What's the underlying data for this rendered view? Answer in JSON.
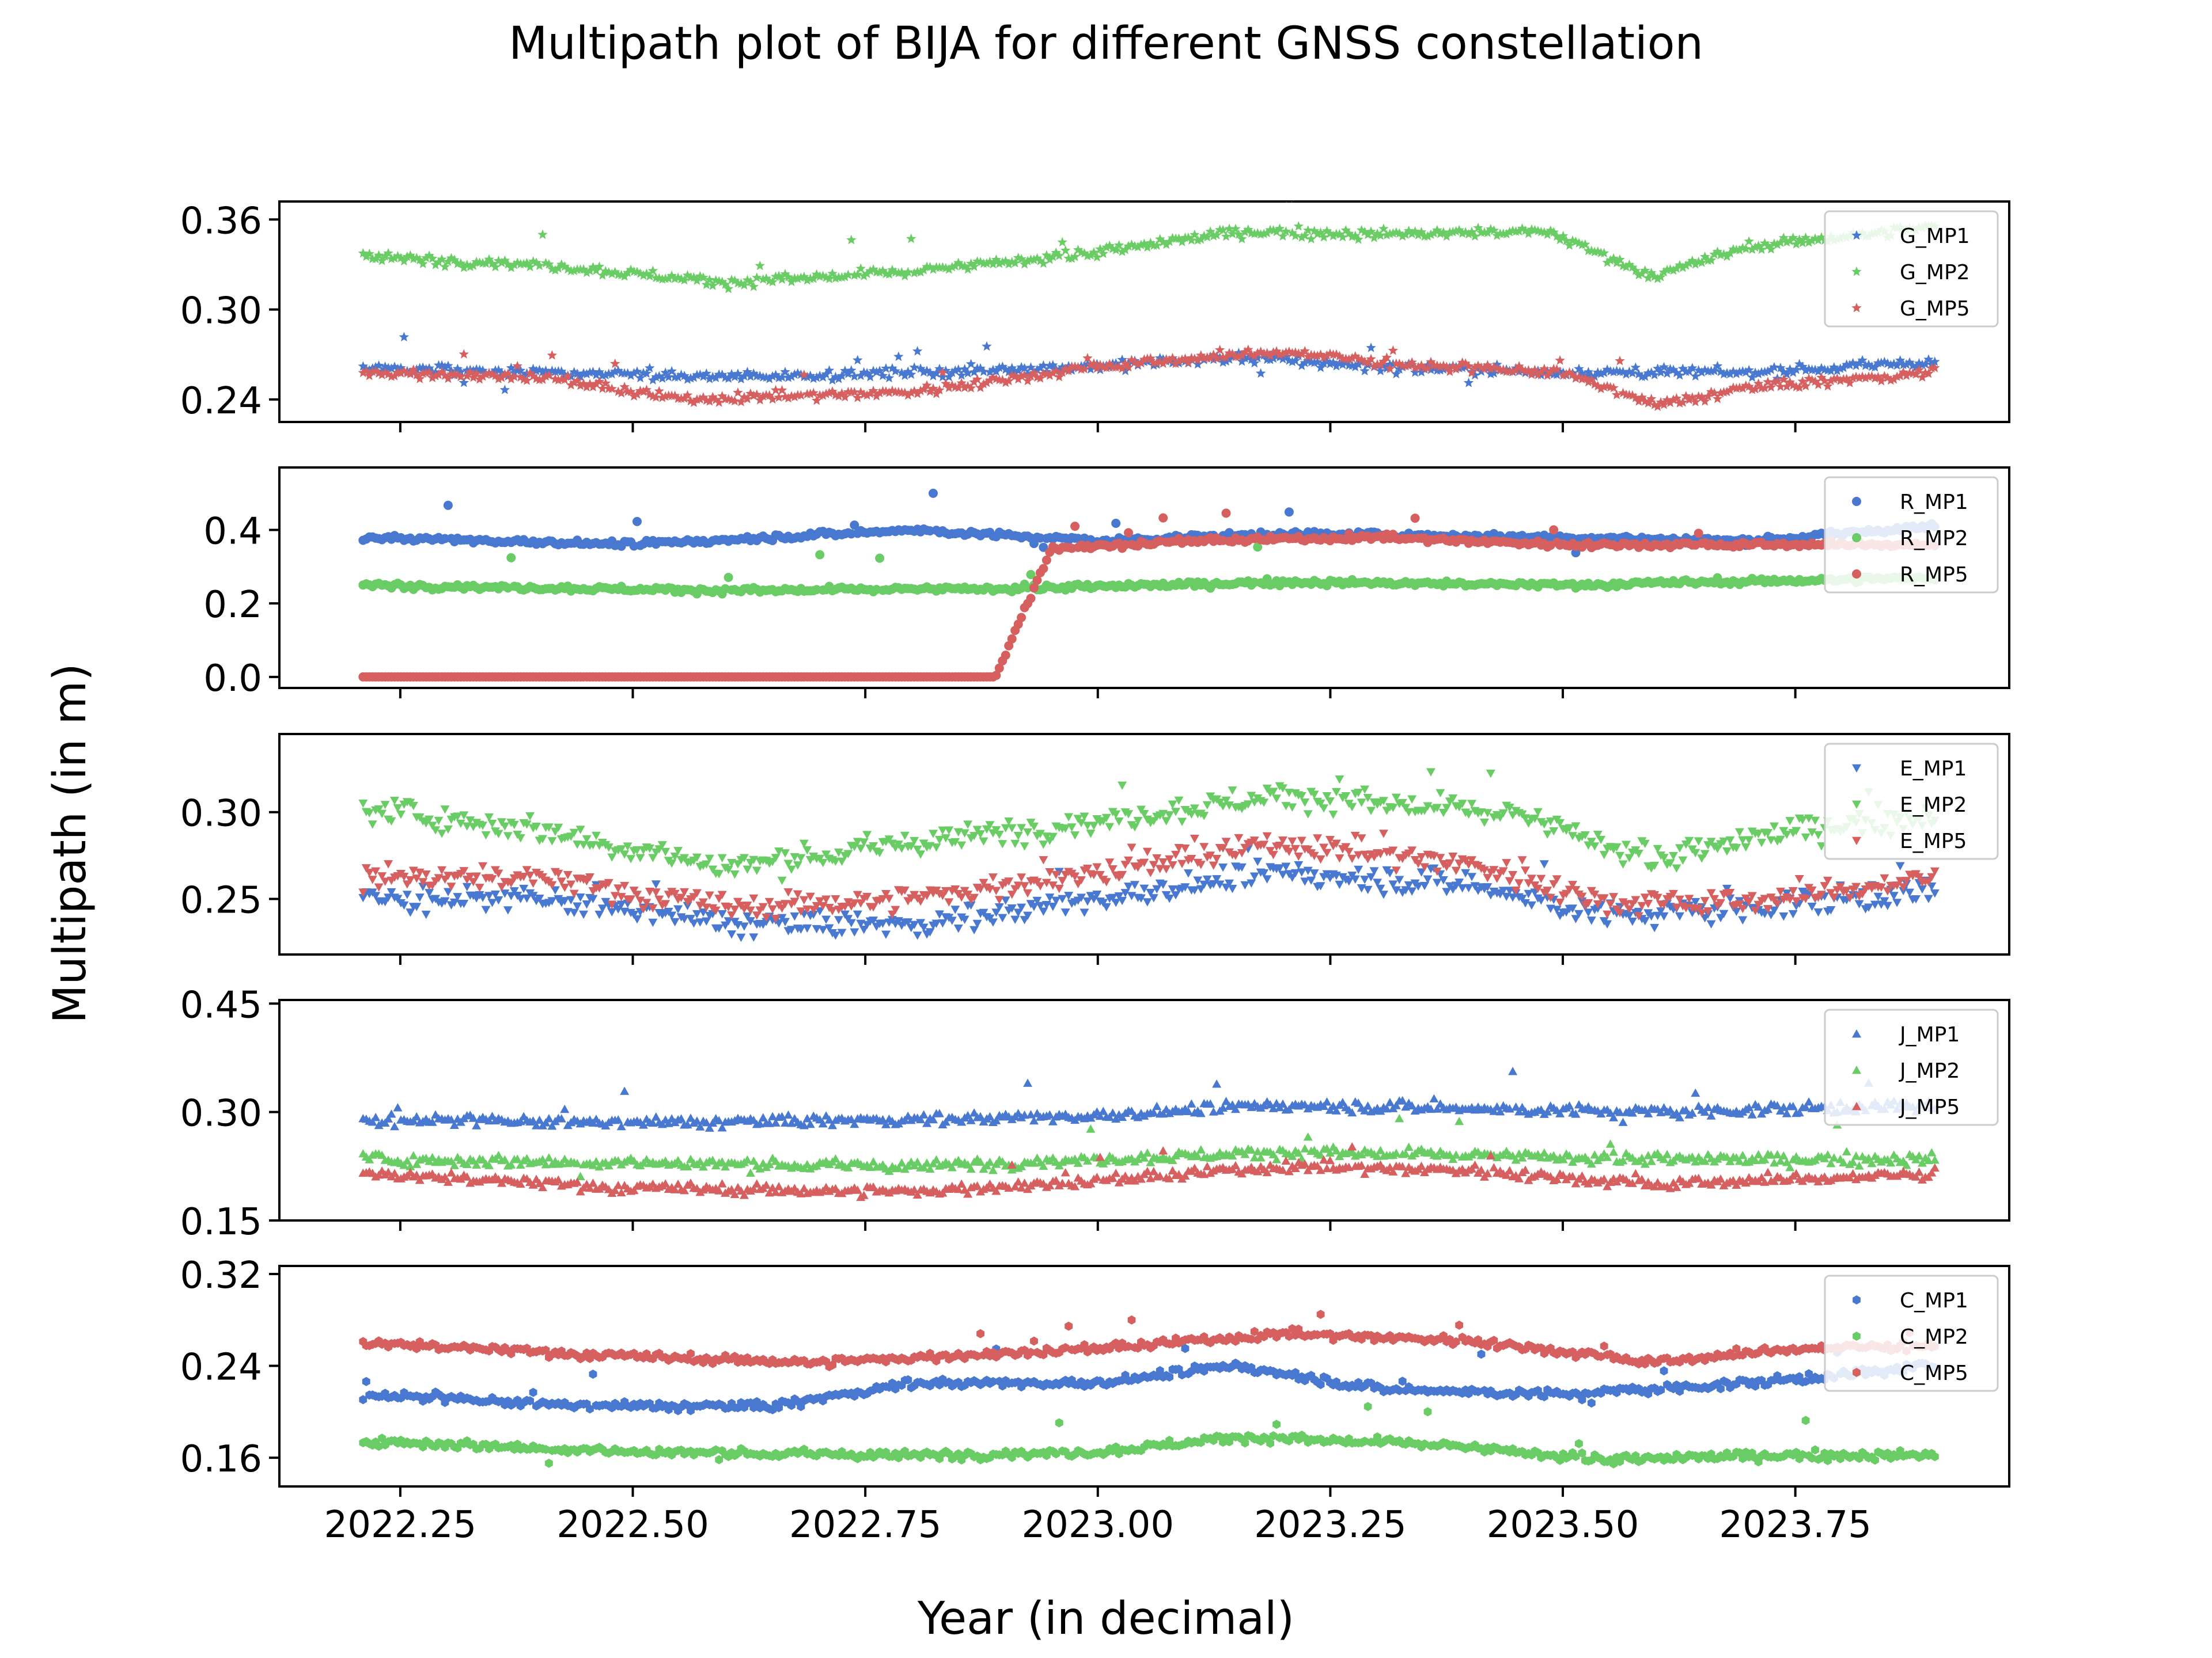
{
  "chart_data": {
    "type": "scatter",
    "title": "Multipath plot of BIJA for different GNSS constellation",
    "xlabel": "Year (in decimal)",
    "ylabel": "Multipath (in m)",
    "x_range": [
      2022.21,
      2023.9
    ],
    "xlim": [
      2022.12,
      2023.98
    ],
    "x_ticks": [
      2022.25,
      2022.5,
      2022.75,
      2023.0,
      2023.25,
      2023.5,
      2023.75
    ],
    "x_tick_labels": [
      "2022.25",
      "2022.50",
      "2022.75",
      "2023.00",
      "2023.25",
      "2023.50",
      "2023.75"
    ],
    "grid": false,
    "legend_position": "top-right",
    "colors": {
      "MP1": "#4878d0",
      "MP2": "#6acc64",
      "MP5": "#d65f5f"
    },
    "panels": [
      {
        "constellation": "G",
        "marker": "star",
        "ylim": [
          0.225,
          0.372
        ],
        "y_ticks": [
          0.24,
          0.3,
          0.36
        ],
        "y_tick_labels": [
          "0.24",
          "0.30",
          "0.36"
        ],
        "series": [
          {
            "name": "G_MP1",
            "points": [
              [
                2022.21,
                0.262
              ],
              [
                2022.4,
                0.258
              ],
              [
                2022.6,
                0.255
              ],
              [
                2022.8,
                0.258
              ],
              [
                2023.0,
                0.262
              ],
              [
                2023.15,
                0.268
              ],
              [
                2023.3,
                0.262
              ],
              [
                2023.5,
                0.258
              ],
              [
                2023.7,
                0.258
              ],
              [
                2023.9,
                0.265
              ]
            ]
          },
          {
            "name": "G_MP2",
            "points": [
              [
                2022.21,
                0.335
              ],
              [
                2022.4,
                0.33
              ],
              [
                2022.6,
                0.318
              ],
              [
                2022.8,
                0.325
              ],
              [
                2023.0,
                0.338
              ],
              [
                2023.15,
                0.352
              ],
              [
                2023.3,
                0.35
              ],
              [
                2023.48,
                0.352
              ],
              [
                2023.6,
                0.322
              ],
              [
                2023.7,
                0.342
              ],
              [
                2023.9,
                0.355
              ]
            ]
          },
          {
            "name": "G_MP5",
            "points": [
              [
                2022.21,
                0.258
              ],
              [
                2022.4,
                0.255
              ],
              [
                2022.55,
                0.24
              ],
              [
                2022.8,
                0.245
              ],
              [
                2023.0,
                0.262
              ],
              [
                2023.2,
                0.272
              ],
              [
                2023.35,
                0.262
              ],
              [
                2023.5,
                0.258
              ],
              [
                2023.6,
                0.236
              ],
              [
                2023.7,
                0.248
              ],
              [
                2023.9,
                0.258
              ]
            ]
          }
        ]
      },
      {
        "constellation": "R",
        "marker": "circle",
        "ylim": [
          -0.03,
          0.57
        ],
        "y_ticks": [
          0.0,
          0.2,
          0.4
        ],
        "y_tick_labels": [
          "0.0",
          "0.2",
          "0.4"
        ],
        "series": [
          {
            "name": "R_MP1",
            "points": [
              [
                2022.21,
                0.38
              ],
              [
                2022.5,
                0.36
              ],
              [
                2022.8,
                0.4
              ],
              [
                2023.0,
                0.37
              ],
              [
                2023.2,
                0.39
              ],
              [
                2023.5,
                0.38
              ],
              [
                2023.7,
                0.37
              ],
              [
                2023.9,
                0.41
              ]
            ]
          },
          {
            "name": "R_MP2",
            "points": [
              [
                2022.21,
                0.25
              ],
              [
                2022.6,
                0.235
              ],
              [
                2022.9,
                0.24
              ],
              [
                2023.2,
                0.258
              ],
              [
                2023.5,
                0.25
              ],
              [
                2023.9,
                0.27
              ]
            ]
          },
          {
            "name": "R_MP5",
            "points": [
              [
                2022.21,
                0.0
              ],
              [
                2022.5,
                0.0
              ],
              [
                2022.89,
                0.0
              ],
              [
                2022.95,
                0.35
              ],
              [
                2023.1,
                0.37
              ],
              [
                2023.3,
                0.38
              ],
              [
                2023.5,
                0.36
              ],
              [
                2023.7,
                0.36
              ],
              [
                2023.9,
                0.36
              ]
            ]
          }
        ]
      },
      {
        "constellation": "E",
        "marker": "triangle-down",
        "ylim": [
          0.218,
          0.345
        ],
        "y_ticks": [
          0.25,
          0.3
        ],
        "y_tick_labels": [
          "0.25",
          "0.30"
        ],
        "series": [
          {
            "name": "E_MP1",
            "points": [
              [
                2022.21,
                0.25
              ],
              [
                2022.4,
                0.25
              ],
              [
                2022.6,
                0.236
              ],
              [
                2022.8,
                0.235
              ],
              [
                2023.0,
                0.25
              ],
              [
                2023.2,
                0.265
              ],
              [
                2023.4,
                0.258
              ],
              [
                2023.55,
                0.24
              ],
              [
                2023.7,
                0.245
              ],
              [
                2023.9,
                0.255
              ]
            ]
          },
          {
            "name": "E_MP2",
            "points": [
              [
                2022.21,
                0.302
              ],
              [
                2022.4,
                0.29
              ],
              [
                2022.6,
                0.268
              ],
              [
                2022.8,
                0.282
              ],
              [
                2023.0,
                0.295
              ],
              [
                2023.2,
                0.31
              ],
              [
                2023.45,
                0.298
              ],
              [
                2023.6,
                0.272
              ],
              [
                2023.75,
                0.29
              ],
              [
                2023.9,
                0.298
              ]
            ]
          },
          {
            "name": "E_MP5",
            "points": [
              [
                2022.21,
                0.262
              ],
              [
                2022.4,
                0.262
              ],
              [
                2022.6,
                0.245
              ],
              [
                2022.8,
                0.25
              ],
              [
                2023.0,
                0.265
              ],
              [
                2023.2,
                0.282
              ],
              [
                2023.4,
                0.27
              ],
              [
                2023.55,
                0.248
              ],
              [
                2023.7,
                0.248
              ],
              [
                2023.9,
                0.262
              ]
            ]
          }
        ]
      },
      {
        "constellation": "J",
        "marker": "triangle-up",
        "ylim": [
          0.15,
          0.455
        ],
        "y_ticks": [
          0.15,
          0.3,
          0.45
        ],
        "y_tick_labels": [
          "0.15",
          "0.30",
          "0.45"
        ],
        "series": [
          {
            "name": "J_MP1",
            "points": [
              [
                2022.21,
                0.29
              ],
              [
                2022.5,
                0.285
              ],
              [
                2022.8,
                0.29
              ],
              [
                2023.0,
                0.295
              ],
              [
                2023.2,
                0.31
              ],
              [
                2023.4,
                0.305
              ],
              [
                2023.6,
                0.3
              ],
              [
                2023.9,
                0.31
              ]
            ]
          },
          {
            "name": "J_MP2",
            "points": [
              [
                2022.21,
                0.235
              ],
              [
                2022.5,
                0.23
              ],
              [
                2022.8,
                0.225
              ],
              [
                2023.0,
                0.235
              ],
              [
                2023.2,
                0.245
              ],
              [
                2023.4,
                0.24
              ],
              [
                2023.6,
                0.235
              ],
              [
                2023.9,
                0.235
              ]
            ]
          },
          {
            "name": "J_MP5",
            "points": [
              [
                2022.21,
                0.215
              ],
              [
                2022.5,
                0.195
              ],
              [
                2022.8,
                0.19
              ],
              [
                2023.0,
                0.205
              ],
              [
                2023.2,
                0.225
              ],
              [
                2023.4,
                0.22
              ],
              [
                2023.6,
                0.2
              ],
              [
                2023.9,
                0.215
              ]
            ]
          }
        ]
      },
      {
        "constellation": "C",
        "marker": "hexagon",
        "ylim": [
          0.135,
          0.327
        ],
        "y_ticks": [
          0.16,
          0.24,
          0.32
        ],
        "y_tick_labels": [
          "0.16",
          "0.24",
          "0.32"
        ],
        "series": [
          {
            "name": "C_MP1",
            "points": [
              [
                2022.21,
                0.215
              ],
              [
                2022.45,
                0.205
              ],
              [
                2022.65,
                0.205
              ],
              [
                2022.8,
                0.225
              ],
              [
                2023.0,
                0.225
              ],
              [
                2023.15,
                0.24
              ],
              [
                2023.3,
                0.22
              ],
              [
                2023.5,
                0.215
              ],
              [
                2023.7,
                0.225
              ],
              [
                2023.9,
                0.24
              ]
            ]
          },
          {
            "name": "C_MP2",
            "points": [
              [
                2022.21,
                0.175
              ],
              [
                2022.5,
                0.165
              ],
              [
                2022.8,
                0.162
              ],
              [
                2023.0,
                0.165
              ],
              [
                2023.15,
                0.178
              ],
              [
                2023.35,
                0.172
              ],
              [
                2023.55,
                0.158
              ],
              [
                2023.7,
                0.162
              ],
              [
                2023.9,
                0.162
              ]
            ]
          },
          {
            "name": "C_MP5",
            "points": [
              [
                2022.21,
                0.26
              ],
              [
                2022.5,
                0.248
              ],
              [
                2022.7,
                0.243
              ],
              [
                2023.0,
                0.255
              ],
              [
                2023.2,
                0.268
              ],
              [
                2023.4,
                0.262
              ],
              [
                2023.6,
                0.243
              ],
              [
                2023.75,
                0.255
              ],
              [
                2023.9,
                0.258
              ]
            ]
          }
        ]
      }
    ]
  }
}
